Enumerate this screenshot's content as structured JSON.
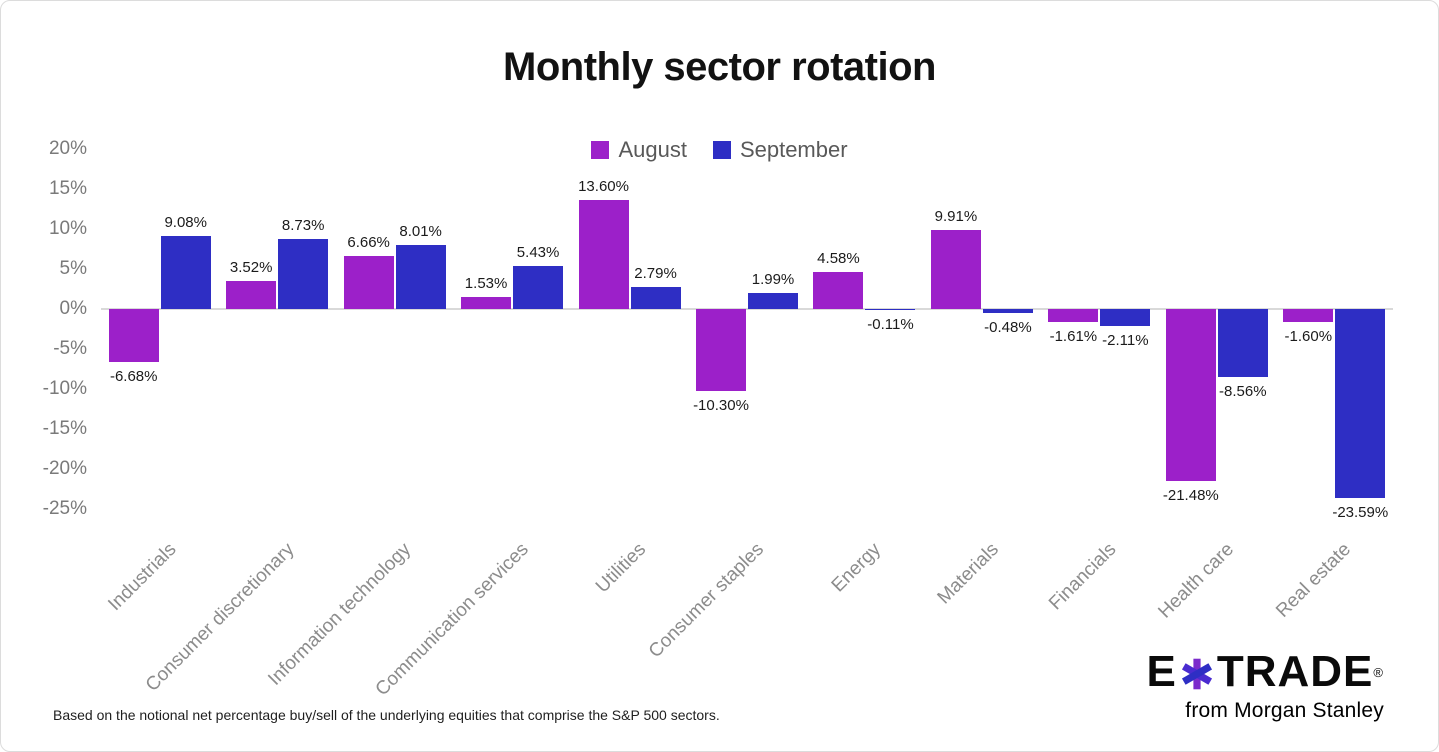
{
  "title": "Monthly sector rotation",
  "footnote": "Based on the notional net percentage buy/sell of the underlying equities that comprise the S&P 500 sectors.",
  "logo": {
    "e": "E",
    "trade": "TRADE",
    "registered": "®",
    "tagline": "from Morgan Stanley"
  },
  "colors": {
    "august": "#9C20C9",
    "september": "#2E2EC4",
    "zero_line": "#d9d9d9",
    "axis_text": "#7a7a7a",
    "category_text": "#8c8c8c"
  },
  "chart_data": {
    "type": "bar",
    "title": "Monthly sector rotation",
    "categories": [
      "Industrials",
      "Consumer discretionary",
      "Information technology",
      "Communication services",
      "Utilities",
      "Consumer staples",
      "Energy",
      "Materials",
      "Financials",
      "Health care",
      "Real estate"
    ],
    "series": [
      {
        "name": "August",
        "color": "#9C20C9",
        "values": [
          -6.68,
          3.52,
          6.66,
          1.53,
          13.6,
          -10.3,
          4.58,
          9.91,
          -1.61,
          -21.48,
          -1.6
        ]
      },
      {
        "name": "September",
        "color": "#2E2EC4",
        "values": [
          9.08,
          8.73,
          8.01,
          5.43,
          2.79,
          1.99,
          -0.11,
          -0.48,
          -2.11,
          -8.56,
          -23.59
        ]
      }
    ],
    "y_ticks": [
      "20%",
      "15%",
      "10%",
      "5%",
      "0%",
      "-5%",
      "-10%",
      "-15%",
      "-20%",
      "-25%"
    ],
    "ylim": [
      -25,
      20
    ],
    "xlabel": "",
    "ylabel": "",
    "unit": "%",
    "grid": false,
    "data_labels": true,
    "value_label_format": "0.00%",
    "legend": [
      "August",
      "September"
    ],
    "legend_position": "top-center"
  }
}
